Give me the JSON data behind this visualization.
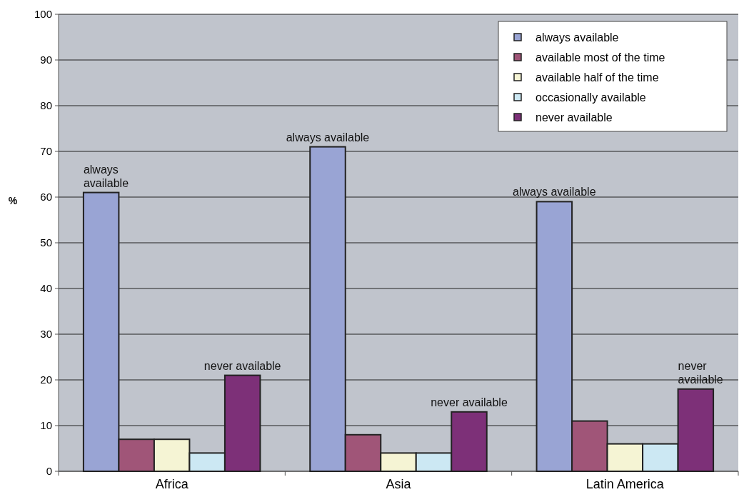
{
  "chart_data": {
    "type": "bar",
    "ylabel": "%",
    "categories": [
      "Africa",
      "Asia",
      "Latin America"
    ],
    "series": [
      {
        "name": "always available",
        "color": "#99a4d4",
        "values": [
          61,
          71,
          59
        ],
        "value_labels": [
          "always\navailable",
          "always available",
          "always available"
        ]
      },
      {
        "name": "available most of the time",
        "color": "#a05578",
        "values": [
          7,
          8,
          11
        ]
      },
      {
        "name": "available half of the time",
        "color": "#f5f4d4",
        "values": [
          7,
          4,
          6
        ]
      },
      {
        "name": "occasionally available",
        "color": "#cce8f3",
        "values": [
          4,
          4,
          6
        ]
      },
      {
        "name": "never available",
        "color": "#7d3078",
        "values": [
          21,
          13,
          18
        ],
        "value_labels": [
          "never available",
          "never available",
          "never\navailable"
        ]
      }
    ],
    "ylim": [
      0,
      100
    ],
    "yticks": [
      0,
      10,
      20,
      30,
      40,
      50,
      60,
      70,
      80,
      90,
      100
    ],
    "grid": "y",
    "legend": "top right"
  }
}
